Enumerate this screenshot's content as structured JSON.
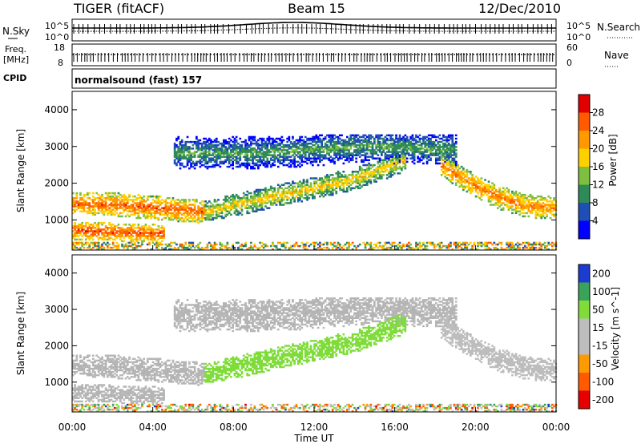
{
  "header": {
    "radar": "TIGER (fitACF)",
    "beam": "Beam 15",
    "date": "12/Dec/2010"
  },
  "top_panels": {
    "nsky_label": "N.Sky",
    "nsky_ticks": [
      "10^5",
      "10^0"
    ],
    "nsearch_label": "N.Search",
    "nsearch_ticks": [
      "10^5",
      "10^0"
    ],
    "freq_label_1": "Freq.",
    "freq_label_2": "[MHz]",
    "freq_ticks": [
      "18",
      "8"
    ],
    "nave_label": "Nave",
    "nave_ticks": [
      "60",
      "0"
    ],
    "cpid_label": "CPID",
    "cpid_value": "normalsound (fast) 157"
  },
  "colors": {
    "power_scale": [
      "#0000ff",
      "#1e4fb4",
      "#2e8b57",
      "#7fbf3f",
      "#ffd000",
      "#ff9900",
      "#ff5a00",
      "#e00000"
    ],
    "velocity_scale": [
      "#1c3bd0",
      "#3aa35a",
      "#7fdc3a",
      "#bdbdbd",
      "#bdbdbd",
      "#ff9b00",
      "#ff5a00",
      "#e60000"
    ],
    "ground_scatter": "#b4b4b4"
  },
  "chart_data": [
    {
      "type": "heatmap",
      "title": "Power",
      "ylabel": "Slant Range [km]",
      "yticks": [
        "1000",
        "2000",
        "3000",
        "4000"
      ],
      "ylim": [
        180,
        4500
      ],
      "colorbar_label": "Power [dB]",
      "colorbar_ticks": [
        "4",
        "8",
        "12",
        "16",
        "20",
        "24",
        "28"
      ],
      "colorbar_range": [
        0,
        32
      ],
      "bands": [
        {
          "start_hr": 0,
          "end_hr": 6.5,
          "range_km": [
            1400,
            1400,
            1300,
            1200
          ],
          "width_km": 320,
          "level": 26
        },
        {
          "start_hr": 0,
          "end_hr": 4.5,
          "range_km": [
            700,
            650,
            600
          ],
          "width_km": 250,
          "level": 27
        },
        {
          "start_hr": 6.5,
          "end_hr": 16.5,
          "range_km": [
            1200,
            1500,
            1800,
            2100,
            2600
          ],
          "width_km": 300,
          "level": 19
        },
        {
          "start_hr": 18.2,
          "end_hr": 24,
          "range_km": [
            2500,
            2000,
            1600,
            1350,
            1300
          ],
          "width_km": 320,
          "level": 24
        },
        {
          "start_hr": 5,
          "end_hr": 19,
          "range_km": [
            2800,
            2800,
            3000,
            2900
          ],
          "width_km": 450,
          "level": 12
        }
      ]
    },
    {
      "type": "heatmap",
      "title": "Velocity",
      "xlabel": "Time UT",
      "xticks": [
        "00:00",
        "04:00",
        "08:00",
        "12:00",
        "16:00",
        "20:00",
        "00:00"
      ],
      "ylabel": "Slant Range [km]",
      "yticks": [
        "1000",
        "2000",
        "3000",
        "4000"
      ],
      "ylim": [
        180,
        4500
      ],
      "colorbar_label": "Velocity [m s^-1]",
      "colorbar_ticks": [
        "200",
        "100",
        "50",
        "15",
        "-15",
        "-50",
        "-100",
        "-200"
      ],
      "colorbar_range": [
        -250,
        250
      ]
    }
  ]
}
